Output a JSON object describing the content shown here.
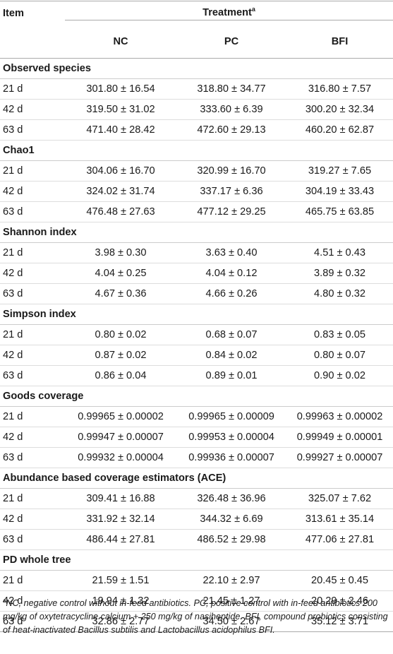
{
  "header": {
    "item_label": "Item",
    "treatment_label": "Treatment",
    "treatment_sup": "a",
    "columns": [
      "NC",
      "PC",
      "BFI"
    ]
  },
  "groups": [
    {
      "name": "Observed species",
      "rows": [
        {
          "day": "21 d",
          "values": [
            "301.80 ± 16.54",
            "318.80 ± 34.77",
            "316.80 ± 7.57"
          ]
        },
        {
          "day": "42 d",
          "values": [
            "319.50 ± 31.02",
            "333.60 ± 6.39",
            "300.20 ± 32.34"
          ]
        },
        {
          "day": "63 d",
          "values": [
            "471.40 ± 28.42",
            "472.60 ± 29.13",
            "460.20 ± 62.87"
          ]
        }
      ]
    },
    {
      "name": "Chao1",
      "rows": [
        {
          "day": "21 d",
          "values": [
            "304.06 ± 16.70",
            "320.99 ± 16.70",
            "319.27 ± 7.65"
          ]
        },
        {
          "day": "42 d",
          "values": [
            "324.02 ± 31.74",
            "337.17 ± 6.36",
            "304.19 ± 33.43"
          ]
        },
        {
          "day": "63 d",
          "values": [
            "476.48 ± 27.63",
            "477.12 ± 29.25",
            "465.75 ± 63.85"
          ]
        }
      ]
    },
    {
      "name": "Shannon index",
      "rows": [
        {
          "day": "21 d",
          "values": [
            "3.98 ± 0.30",
            "3.63 ± 0.40",
            "4.51 ± 0.43"
          ]
        },
        {
          "day": "42 d",
          "values": [
            "4.04 ± 0.25",
            "4.04 ± 0.12",
            "3.89 ± 0.32"
          ]
        },
        {
          "day": "63 d",
          "values": [
            "4.67 ± 0.36",
            "4.66 ± 0.26",
            "4.80 ± 0.32"
          ]
        }
      ]
    },
    {
      "name": "Simpson index",
      "rows": [
        {
          "day": "21 d",
          "values": [
            "0.80 ± 0.02",
            "0.68 ± 0.07",
            "0.83 ± 0.05"
          ]
        },
        {
          "day": "42 d",
          "values": [
            "0.87 ± 0.02",
            "0.84 ± 0.02",
            "0.80 ± 0.07"
          ]
        },
        {
          "day": "63 d",
          "values": [
            "0.86 ± 0.04",
            "0.89 ± 0.01",
            "0.90 ± 0.02"
          ]
        }
      ]
    },
    {
      "name": "Goods coverage",
      "rows": [
        {
          "day": "21 d",
          "values": [
            "0.99965 ± 0.00002",
            "0.99965 ± 0.00009",
            "0.99963 ± 0.00002"
          ]
        },
        {
          "day": "42 d",
          "values": [
            "0.99947 ± 0.00007",
            "0.99953 ± 0.00004",
            "0.99949 ± 0.00001"
          ]
        },
        {
          "day": "63 d",
          "values": [
            "0.99932 ± 0.00004",
            "0.99936 ± 0.00007",
            "0.99927 ± 0.00007"
          ]
        }
      ]
    },
    {
      "name": "Abundance based coverage estimators (ACE)",
      "rows": [
        {
          "day": "21 d",
          "values": [
            "309.41 ± 16.88",
            "326.48 ± 36.96",
            "325.07 ± 7.62"
          ]
        },
        {
          "day": "42 d",
          "values": [
            "331.92 ± 32.14",
            "344.32 ± 6.69",
            "313.61 ± 35.14"
          ]
        },
        {
          "day": "63 d",
          "values": [
            "486.44 ± 27.81",
            "486.52 ± 29.98",
            "477.06 ± 27.81"
          ]
        }
      ]
    },
    {
      "name": "PD whole tree",
      "rows": [
        {
          "day": "21 d",
          "values": [
            "21.59 ± 1.51",
            "22.10 ± 2.97",
            "20.45 ± 0.45"
          ]
        },
        {
          "day": "42 d",
          "values": [
            "19.94 ± 1.32",
            "21.45 ± 1.27",
            "20.29 ± 2.46"
          ]
        },
        {
          "day": "63 d",
          "values": [
            "32.86 ± 2.77",
            "34.50 ± 2.67",
            "35.12 ± 3.71"
          ]
        }
      ]
    }
  ],
  "footnote": {
    "sup": "a",
    "text": "NC, negative control without in-feed antibiotics. PC, positive control with in-feed antibiotics 200 mg/kg of oxytetracycline calcium + 250 mg/kg of nasiheptide. BFI, compound probiotics consisting of heat-inactivated Bacillus subtilis and Lactobacillus acidophilus BFI."
  }
}
